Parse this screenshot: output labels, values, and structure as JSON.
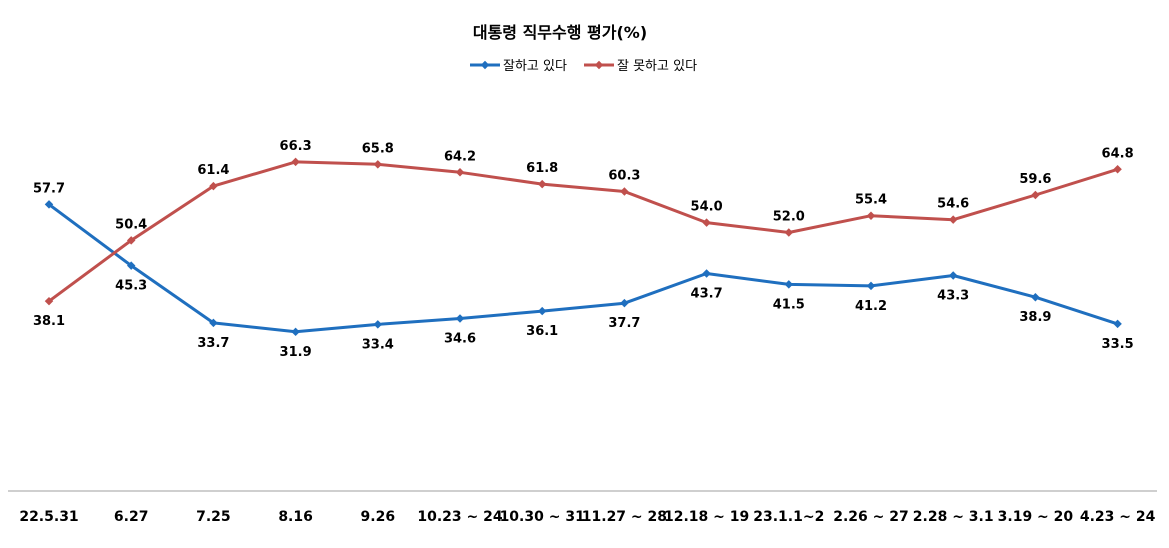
{
  "chart_data": {
    "type": "line",
    "title": "대통령 직무수행 평가(%)",
    "categories": [
      "22.5.31",
      "6.27",
      "7.25",
      "8.16",
      "9.26",
      "10.23 ~ 24",
      "10.30 ~ 31",
      "11.27 ~ 28",
      "12.18 ~ 19",
      "23.1.1~2",
      "2.26 ~ 27",
      "2.28 ~ 3.1",
      "3.19 ~ 20",
      "4.23 ~ 24"
    ],
    "series": [
      {
        "name": "잘하고 있다",
        "color": "#1f6fbf",
        "values": [
          57.7,
          45.3,
          33.7,
          31.9,
          33.4,
          34.6,
          36.1,
          37.7,
          43.7,
          41.5,
          41.2,
          43.3,
          38.9,
          33.5
        ]
      },
      {
        "name": "잘 못하고 있다",
        "color": "#c0504d",
        "values": [
          38.1,
          50.4,
          61.4,
          66.3,
          65.8,
          64.2,
          61.8,
          60.3,
          54.0,
          52.0,
          55.4,
          54.6,
          59.6,
          64.8
        ]
      }
    ],
    "labels_text": {
      "s0": [
        "57.7",
        "45.3",
        "33.7",
        "31.9",
        "33.4",
        "34.6",
        "36.1",
        "37.7",
        "43.7",
        "41.5",
        "41.2",
        "43.3",
        "38.9",
        "33.5"
      ],
      "s1": [
        "38.1",
        "50.4",
        "61.4",
        "66.3",
        "65.8",
        "64.2",
        "61.8",
        "60.3",
        "54.0",
        "52.0",
        "55.4",
        "54.6",
        "59.6",
        "64.8"
      ]
    },
    "legend_position": "top-center",
    "grid": false
  }
}
